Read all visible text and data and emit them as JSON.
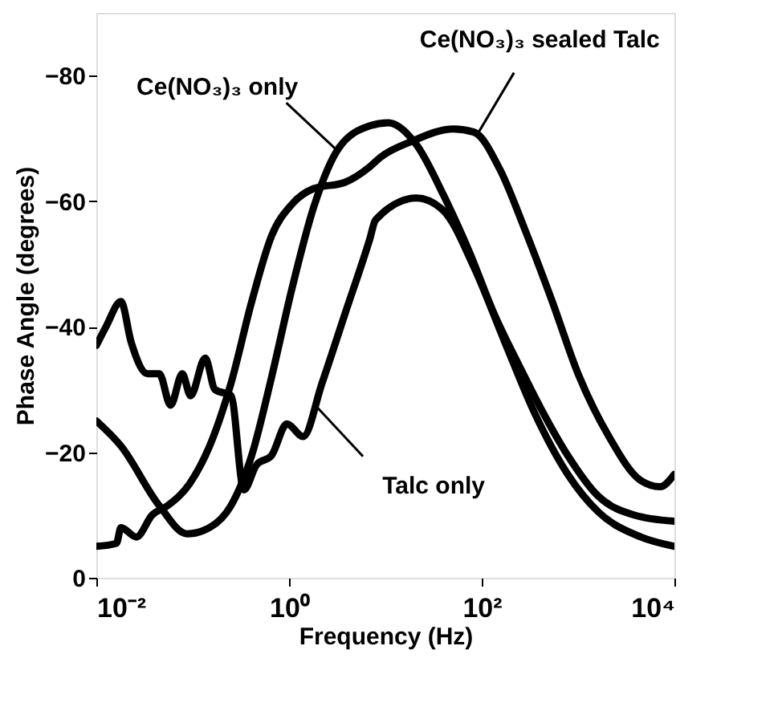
{
  "chart_data": {
    "type": "line",
    "xlabel": "Frequency (Hz)",
    "ylabel": "Phase Angle (degrees)",
    "log": "x",
    "grid": false,
    "line_style": "solid",
    "marker": "none",
    "xlim": [
      0.01,
      10000
    ],
    "xticks": [
      {
        "value": 0.01,
        "label": "10⁻²"
      },
      {
        "value": 1,
        "label": "10⁰"
      },
      {
        "value": 100,
        "label": "10²"
      },
      {
        "value": 10000,
        "label": "10⁴"
      }
    ],
    "ylim": [
      0,
      -90
    ],
    "yticks": [
      0,
      -20,
      -40,
      -60,
      -80
    ],
    "series": [
      {
        "color": "#000000",
        "x": [
          0.01,
          0.018,
          0.045,
          0.087,
          0.15,
          0.25,
          0.41,
          0.66,
          1.07,
          1.8,
          3.3,
          6.9,
          10.7,
          21,
          40,
          74,
          135,
          250,
          410,
          780,
          1620,
          3800,
          10000
        ],
        "values": [
          -25,
          -21,
          -11.5,
          -7,
          -8,
          -11.5,
          -19.5,
          -32,
          -46,
          -59,
          -68.5,
          -72,
          -72.5,
          -69,
          -61,
          -52,
          -42,
          -33.5,
          -27,
          -19.5,
          -13,
          -10,
          -9
        ]
      },
      {
        "color": "#000000",
        "x": [
          0.01,
          0.0162,
          0.018,
          0.026,
          0.038,
          0.055,
          0.093,
          0.15,
          0.25,
          0.41,
          0.66,
          1.07,
          1.8,
          3.8,
          6.9,
          8.9,
          18.6,
          51,
          83,
          155,
          280,
          540,
          1000,
          2090,
          4470,
          7080,
          10000
        ],
        "values": [
          -5,
          -5.5,
          -8,
          -6.5,
          -10,
          -11.5,
          -15,
          -21,
          -31,
          -44,
          -54.5,
          -59.5,
          -62,
          -63,
          -65.5,
          -67,
          -69.5,
          -71.5,
          -71,
          -65,
          -55.5,
          -44,
          -32.5,
          -22.5,
          -15.5,
          -14.5,
          -16.5
        ]
      },
      {
        "color": "#000000",
        "x": [
          0.01,
          0.0126,
          0.018,
          0.023,
          0.034,
          0.045,
          0.059,
          0.078,
          0.095,
          0.135,
          0.17,
          0.25,
          0.34,
          0.46,
          0.66,
          0.95,
          1.4,
          2.2,
          3.8,
          6.9,
          7.9,
          21,
          40,
          83,
          174,
          360,
          780,
          1620,
          4470,
          10000
        ],
        "values": [
          -37,
          -40,
          -44,
          -37.5,
          -32.5,
          -32.5,
          -27.5,
          -32.5,
          -29,
          -35,
          -30,
          -29,
          -14,
          -18,
          -19.5,
          -24.5,
          -22.5,
          -31,
          -42,
          -54,
          -57,
          -60.5,
          -58.5,
          -49.5,
          -37.5,
          -26,
          -16.5,
          -10.5,
          -6.5,
          -5
        ]
      }
    ],
    "annotations": [
      {
        "text": "Ce(NO₃)₃ only",
        "x": 3.2,
        "y": -68
      },
      {
        "text": "Ce(NO₃)₃ sealed Talc",
        "x": 93,
        "y": -71
      },
      {
        "text": "Talc only",
        "x": 2,
        "y": -27
      }
    ]
  }
}
